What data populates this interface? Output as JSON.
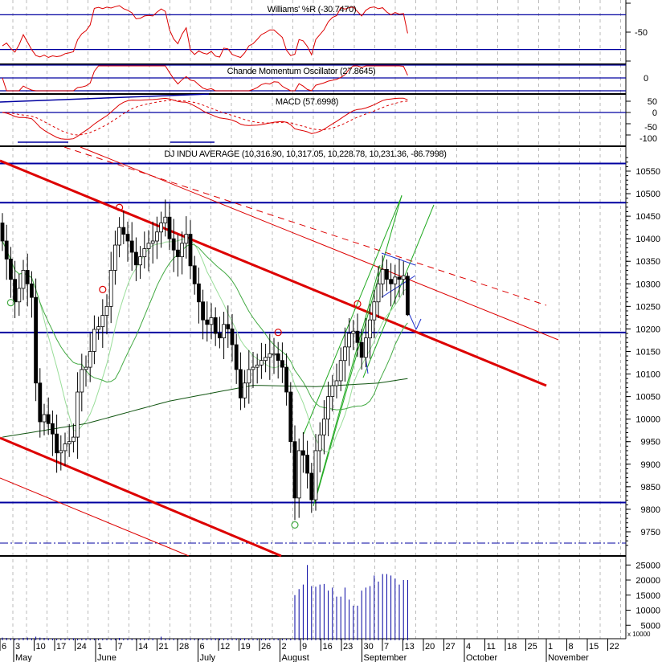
{
  "chart_data": [
    {
      "type": "line",
      "title": "Williams' %R (-30.7470)",
      "y_ticks": [
        "-50"
      ],
      "levels": [
        -20,
        -80
      ],
      "ylim": [
        -100,
        0
      ]
    },
    {
      "type": "line",
      "title": "Chande Momentum Oscillator (27.8645)",
      "y_ticks": [
        "0"
      ],
      "levels": [
        50,
        0,
        -50
      ],
      "ylim": [
        -60,
        60
      ]
    },
    {
      "type": "line",
      "title": "MACD (57.6998)",
      "y_ticks": [
        "50",
        "0",
        "-50",
        "-100"
      ],
      "levels": [
        0
      ],
      "ylim": [
        -130,
        80
      ]
    },
    {
      "type": "candlestick",
      "title": "DJ INDU AVERAGE (10,316.90, 10,317.05, 10,228.78, 10,231.36, -86.7998)",
      "y_ticks": [
        "10550",
        "10500",
        "10450",
        "10400",
        "10350",
        "10300",
        "10250",
        "10200",
        "10150",
        "10100",
        "10050",
        "10000",
        "9950",
        "9900",
        "9850",
        "9800",
        "9750"
      ],
      "ylim": [
        9700,
        10590
      ],
      "levels": [
        10567,
        10480,
        10192,
        9815
      ],
      "dashdot_level": 9725,
      "close": [
        10395,
        10355,
        10310,
        10260,
        10290,
        10330,
        10300,
        10270,
        10080,
        9994,
        10010,
        9990,
        9967,
        9925,
        9930,
        9945,
        9950,
        9960,
        10060,
        10110,
        10115,
        10150,
        10199,
        10205,
        10230,
        10250,
        10330,
        10386,
        10425,
        10410,
        10395,
        10370,
        10342,
        10360,
        10378,
        10390,
        10395,
        10415,
        10435,
        10448,
        10400,
        10375,
        10360,
        10390,
        10410,
        10340,
        10300,
        10260,
        10220,
        10210,
        10225,
        10190,
        10180,
        10210,
        10200,
        10165,
        10110,
        10047,
        10080,
        10110,
        10115,
        10120,
        10130,
        10137,
        10145,
        10145,
        10130,
        10115,
        10060,
        9950,
        9825,
        9930,
        9920,
        9880,
        9821,
        9930,
        9965,
        10000,
        10050,
        10074,
        10085,
        10130,
        10160,
        10190,
        10195,
        10170,
        10137,
        10180,
        10220,
        10260,
        10300,
        10332,
        10310,
        10300,
        10315,
        10310,
        10318,
        10231.36
      ],
      "last_bar": {
        "open": 10316.9,
        "high": 10317.05,
        "low": 10228.78,
        "close": 10231.36,
        "change": -86.7998
      },
      "ma_long": [
        [
          0,
          9960
        ],
        [
          20,
          9990
        ],
        [
          40,
          10040
        ],
        [
          60,
          10075
        ],
        [
          75,
          10072
        ],
        [
          90,
          10080
        ],
        [
          97,
          10090
        ]
      ],
      "colors": {
        "up": "#ffffff",
        "down": "#000000",
        "level": "#0000a0",
        "trend": "#dd0000",
        "ma_short": "#99dd99",
        "ma_mid": "#44aa44",
        "ma_long": "#115511",
        "channel": "#22aa22"
      },
      "signal_icons": [
        {
          "bar": 28,
          "color": "#dd0000"
        },
        {
          "bar": 24,
          "color": "#dd0000"
        },
        {
          "bar": 66,
          "color": "#dd0000"
        },
        {
          "bar": 85,
          "color": "#dd0000"
        },
        {
          "bar": 2,
          "color": "#44aa44"
        },
        {
          "bar": 70,
          "color": "#44aa44"
        }
      ]
    },
    {
      "type": "bar",
      "y_ticks": [
        "25000",
        "20000",
        "15000",
        "10000",
        "5000"
      ],
      "unit_label": "x 10000",
      "values": [
        900,
        800,
        700,
        600,
        700,
        800,
        900,
        700,
        1200,
        900,
        800,
        700,
        600,
        500,
        500,
        600,
        600,
        700,
        500,
        500,
        600,
        500,
        500,
        400,
        500,
        500,
        500,
        500,
        800,
        600,
        600,
        500,
        500,
        500,
        500,
        500,
        600,
        600,
        1200,
        600,
        500,
        500,
        500,
        500,
        500,
        600,
        500,
        500,
        600,
        500,
        600,
        700,
        700,
        600,
        600,
        500,
        600,
        600,
        700,
        500,
        500,
        500,
        600,
        500,
        500,
        500,
        600,
        500,
        500,
        500,
        15000,
        17000,
        18500,
        25000,
        18000,
        17800,
        18500,
        18700,
        16500,
        17500,
        14500,
        14500,
        17500,
        13500,
        11500,
        11500,
        16500,
        17500,
        18000,
        21500,
        19500,
        22000,
        22000,
        21500,
        20500,
        18500,
        20000,
        20000
      ]
    }
  ],
  "x_axis": {
    "day_labels": [
      "6",
      "3",
      "10",
      "17",
      "24",
      "1",
      "7",
      "14",
      "21",
      "28",
      "6",
      "12",
      "19",
      "26",
      "2",
      "9",
      "16",
      "23",
      "30",
      "7",
      "13",
      "20",
      "27",
      "4",
      "11",
      "18",
      "25",
      "1",
      "8",
      "15",
      "22"
    ],
    "months": [
      {
        "label": "May",
        "at": 1
      },
      {
        "label": "June",
        "at": 5
      },
      {
        "label": "July",
        "at": 10
      },
      {
        "label": "August",
        "at": 14
      },
      {
        "label": "September",
        "at": 18
      },
      {
        "label": "October",
        "at": 23
      },
      {
        "label": "November",
        "at": 27
      }
    ]
  }
}
